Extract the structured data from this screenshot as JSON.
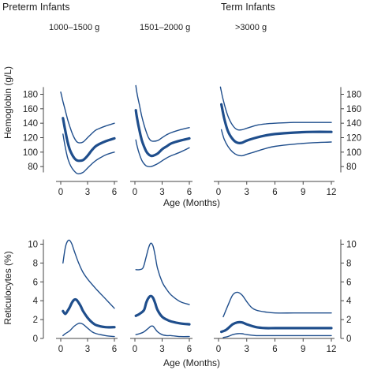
{
  "chart_data": [
    {
      "type": "line",
      "group_title": "Preterm Infants",
      "weight_label": "1000–1500 g",
      "ylabel": "Hemoglobin (g/L)",
      "xlabel": "",
      "xlim": [
        0,
        6
      ],
      "ylim": [
        70,
        195
      ],
      "xticks": [
        0,
        3,
        6
      ],
      "yticks": [
        80,
        100,
        120,
        140,
        160,
        180
      ],
      "series": [
        {
          "role": "upper",
          "x": [
            0,
            0.25,
            0.5,
            0.75,
            1,
            1.25,
            1.5,
            1.75,
            2,
            2.5,
            3,
            3.5,
            4,
            5,
            6
          ],
          "y": [
            183,
            170,
            158,
            146,
            136,
            127,
            120,
            115,
            113,
            114,
            120,
            126,
            131,
            136,
            140
          ]
        },
        {
          "role": "median",
          "x": [
            0.25,
            0.5,
            0.75,
            1,
            1.25,
            1.5,
            1.75,
            2,
            2.5,
            3,
            3.5,
            4,
            5,
            6
          ],
          "y": [
            147,
            130,
            115,
            104,
            97,
            92,
            89,
            88,
            89,
            95,
            103,
            109,
            115,
            119
          ]
        },
        {
          "role": "lower",
          "x": [
            0.25,
            0.5,
            0.75,
            1,
            1.25,
            1.5,
            1.75,
            2,
            2.5,
            3,
            3.5,
            4,
            5,
            6
          ],
          "y": [
            125,
            107,
            93,
            84,
            78,
            74,
            71,
            70,
            72,
            78,
            84,
            89,
            96,
            100
          ]
        }
      ]
    },
    {
      "type": "line",
      "weight_label": "1501–2000 g",
      "xlim": [
        0,
        6
      ],
      "ylim": [
        70,
        195
      ],
      "xticks": [
        0,
        3,
        6
      ],
      "yticks": [],
      "series": [
        {
          "role": "upper",
          "x": [
            0.1,
            0.25,
            0.5,
            0.75,
            1,
            1.25,
            1.5,
            1.75,
            2,
            2.5,
            3,
            3.5,
            4,
            5,
            6
          ],
          "y": [
            192,
            180,
            165,
            150,
            138,
            128,
            120,
            116,
            115,
            116,
            120,
            124,
            127,
            131,
            134
          ]
        },
        {
          "role": "median",
          "x": [
            0.1,
            0.25,
            0.5,
            0.75,
            1,
            1.25,
            1.5,
            1.75,
            2,
            2.5,
            3,
            3.5,
            4,
            5,
            6
          ],
          "y": [
            158,
            146,
            130,
            117,
            108,
            101,
            97,
            95,
            95,
            98,
            104,
            108,
            112,
            116,
            119
          ]
        },
        {
          "role": "lower",
          "x": [
            0.1,
            0.25,
            0.5,
            0.75,
            1,
            1.25,
            1.5,
            1.75,
            2,
            2.5,
            3,
            3.5,
            4,
            5,
            6
          ],
          "y": [
            117,
            108,
            97,
            89,
            84,
            81,
            80,
            80,
            81,
            84,
            88,
            92,
            95,
            100,
            106
          ]
        }
      ]
    },
    {
      "type": "line",
      "group_title": "Term Infants",
      "weight_label": ">3000 g",
      "xlabel": "Age (Months)",
      "xlim": [
        0,
        12
      ],
      "ylim": [
        70,
        195
      ],
      "xticks": [
        0,
        3,
        6,
        9,
        12
      ],
      "yticks": [
        80,
        100,
        120,
        140,
        160,
        180
      ],
      "series": [
        {
          "role": "upper",
          "x": [
            0.2,
            0.5,
            1,
            1.5,
            2,
            2.5,
            3,
            4,
            5,
            6,
            8,
            10,
            12
          ],
          "y": [
            190,
            172,
            150,
            137,
            131,
            131,
            133,
            137,
            139,
            140,
            141,
            141,
            141
          ]
        },
        {
          "role": "median",
          "x": [
            0.3,
            0.6,
            1,
            1.5,
            2,
            2.5,
            3,
            4,
            5,
            6,
            8,
            10,
            12
          ],
          "y": [
            166,
            147,
            129,
            118,
            113,
            113,
            116,
            120,
            123,
            125,
            127,
            128,
            128
          ]
        },
        {
          "role": "lower",
          "x": [
            0.3,
            0.6,
            1,
            1.5,
            2,
            2.5,
            3,
            4,
            5,
            6,
            8,
            10,
            12
          ],
          "y": [
            131,
            118,
            108,
            100,
            96,
            95,
            97,
            101,
            105,
            108,
            111,
            113,
            114
          ]
        }
      ]
    },
    {
      "type": "line",
      "ylabel": "Reticulocytes (%)",
      "xlim": [
        0,
        6
      ],
      "ylim": [
        0,
        11
      ],
      "xticks": [
        0,
        3,
        6
      ],
      "yticks": [
        0,
        2,
        4,
        6,
        8,
        10
      ],
      "series": [
        {
          "role": "upper",
          "x": [
            0.25,
            0.5,
            0.75,
            1,
            1.25,
            1.5,
            2,
            2.5,
            3,
            4,
            5,
            6
          ],
          "y": [
            8,
            9.6,
            10.3,
            10.4,
            10,
            9.3,
            8,
            7,
            6.3,
            5.2,
            4.2,
            3.2
          ]
        },
        {
          "role": "median",
          "x": [
            0.25,
            0.5,
            0.75,
            1,
            1.25,
            1.5,
            1.75,
            2,
            2.25,
            2.5,
            3,
            3.5,
            4,
            5,
            6
          ],
          "y": [
            2.9,
            2.6,
            2.9,
            3.3,
            3.8,
            4.1,
            4.1,
            3.8,
            3.4,
            2.9,
            2.2,
            1.7,
            1.4,
            1.2,
            1.2
          ]
        },
        {
          "role": "lower",
          "x": [
            0.25,
            0.5,
            1,
            1.5,
            2,
            2.25,
            2.5,
            3,
            3.5,
            4,
            5,
            6
          ],
          "y": [
            0.3,
            0.5,
            0.8,
            1.3,
            1.6,
            1.6,
            1.5,
            1.1,
            0.7,
            0.5,
            0.3,
            0.2
          ]
        }
      ]
    },
    {
      "type": "line",
      "xlim": [
        0,
        6
      ],
      "ylim": [
        0,
        11
      ],
      "xticks": [
        0,
        3,
        6
      ],
      "yticks": [],
      "series": [
        {
          "role": "upper",
          "x": [
            0.1,
            0.5,
            0.9,
            1.2,
            1.5,
            1.75,
            2,
            2.25,
            2.5,
            3,
            3.5,
            4,
            5,
            6
          ],
          "y": [
            7.3,
            7.3,
            7.5,
            8.5,
            9.6,
            10.1,
            9.8,
            8.7,
            7.4,
            6,
            5.2,
            4.6,
            3.9,
            3.6
          ]
        },
        {
          "role": "median",
          "x": [
            0.1,
            0.5,
            1,
            1.25,
            1.5,
            1.75,
            2,
            2.25,
            2.5,
            3,
            3.5,
            4,
            5,
            6
          ],
          "y": [
            2.4,
            2.6,
            3,
            3.8,
            4.3,
            4.5,
            4.3,
            3.7,
            3,
            2.3,
            2,
            1.8,
            1.6,
            1.5
          ]
        },
        {
          "role": "lower",
          "x": [
            0.1,
            0.5,
            1,
            1.5,
            1.75,
            2,
            2.25,
            2.5,
            3,
            3.5,
            4,
            5,
            6
          ],
          "y": [
            0.4,
            0.5,
            0.7,
            1.1,
            1.3,
            1.3,
            1,
            0.7,
            0.4,
            0.3,
            0.3,
            0.2,
            0.2
          ]
        }
      ]
    },
    {
      "type": "line",
      "xlabel": "Age (Months)",
      "xlim": [
        0,
        12
      ],
      "ylim": [
        0,
        11
      ],
      "xticks": [
        0,
        3,
        6,
        9,
        12
      ],
      "yticks": [
        0,
        2,
        4,
        6,
        8,
        10
      ],
      "series": [
        {
          "role": "upper",
          "x": [
            0.5,
            1,
            1.5,
            2,
            2.5,
            3,
            3.5,
            4,
            5,
            6,
            8,
            10,
            12
          ],
          "y": [
            2.3,
            3.5,
            4.6,
            4.9,
            4.6,
            3.9,
            3.3,
            3,
            2.8,
            2.7,
            2.7,
            2.7,
            2.7
          ]
        },
        {
          "role": "median",
          "x": [
            0.3,
            0.8,
            1.5,
            2,
            2.5,
            3,
            4,
            5,
            6,
            8,
            10,
            12
          ],
          "y": [
            0.7,
            0.9,
            1.5,
            1.7,
            1.7,
            1.5,
            1.2,
            1.1,
            1.1,
            1.1,
            1.1,
            1.1
          ]
        },
        {
          "role": "lower",
          "x": [
            0.5,
            1,
            1.5,
            2,
            2.5,
            3,
            4,
            5,
            6,
            8,
            10,
            12
          ],
          "y": [
            0.1,
            0.2,
            0.4,
            0.5,
            0.5,
            0.4,
            0.3,
            0.3,
            0.3,
            0.3,
            0.3,
            0.3
          ]
        }
      ]
    }
  ],
  "colors": {
    "curve": "#1f4e8c",
    "axis": "#444444",
    "text": "#222222"
  }
}
